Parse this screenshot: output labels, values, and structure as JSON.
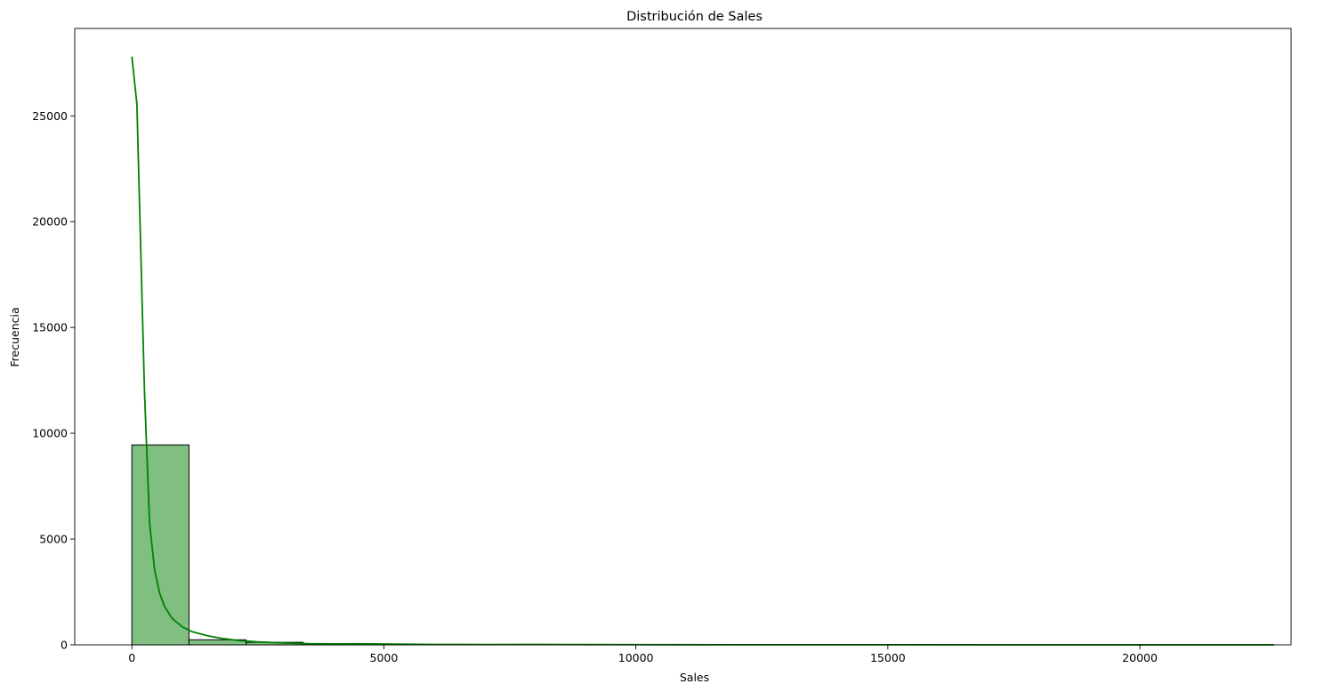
{
  "chart_data": {
    "type": "histogram",
    "title": "Distribución de Sales",
    "xlabel": "Sales",
    "ylabel": "Frecuencia",
    "xlim": [
      -1133.5,
      23000
    ],
    "ylim": [
      0,
      29130
    ],
    "xticks": [
      0,
      5000,
      10000,
      15000,
      20000
    ],
    "yticks": [
      0,
      5000,
      10000,
      15000,
      20000,
      25000
    ],
    "bar_color": "#80bf80",
    "bar_edge_color": "#000000",
    "kde_color": "#008000",
    "bins": [
      {
        "start": 0,
        "end": 1133,
        "count": 9450
      },
      {
        "start": 1133,
        "end": 2266,
        "count": 240
      },
      {
        "start": 2266,
        "end": 3399,
        "count": 120
      },
      {
        "start": 3399,
        "end": 4532,
        "count": 60
      },
      {
        "start": 4532,
        "end": 5665,
        "count": 40
      },
      {
        "start": 5665,
        "end": 6798,
        "count": 20
      },
      {
        "start": 6798,
        "end": 7931,
        "count": 12
      },
      {
        "start": 7931,
        "end": 9064,
        "count": 10
      },
      {
        "start": 9064,
        "end": 10197,
        "count": 6
      },
      {
        "start": 10197,
        "end": 11330,
        "count": 3
      },
      {
        "start": 11330,
        "end": 12463,
        "count": 2
      },
      {
        "start": 12463,
        "end": 13596,
        "count": 1
      },
      {
        "start": 13596,
        "end": 14729,
        "count": 1
      },
      {
        "start": 14729,
        "end": 15862,
        "count": 0
      },
      {
        "start": 15862,
        "end": 16995,
        "count": 0
      },
      {
        "start": 16995,
        "end": 18128,
        "count": 0
      },
      {
        "start": 18128,
        "end": 19261,
        "count": 0
      },
      {
        "start": 19261,
        "end": 20394,
        "count": 0
      },
      {
        "start": 20394,
        "end": 21527,
        "count": 0
      },
      {
        "start": 21527,
        "end": 22660,
        "count": 1
      }
    ],
    "kde": {
      "x": [
        0,
        100,
        250,
        350,
        450,
        550,
        650,
        800,
        1000,
        1200,
        1500,
        1800,
        2100,
        2500,
        3000,
        3500,
        4000,
        4500,
        5000,
        6000,
        7000,
        8000,
        9000,
        10000,
        12000,
        15000,
        18000,
        20000,
        22660
      ],
      "y": [
        27800,
        25550,
        12000,
        5800,
        3550,
        2450,
        1800,
        1250,
        850,
        620,
        430,
        300,
        210,
        140,
        90,
        55,
        48,
        50,
        40,
        22,
        15,
        18,
        12,
        10,
        6,
        4,
        3,
        3,
        2
      ]
    }
  }
}
